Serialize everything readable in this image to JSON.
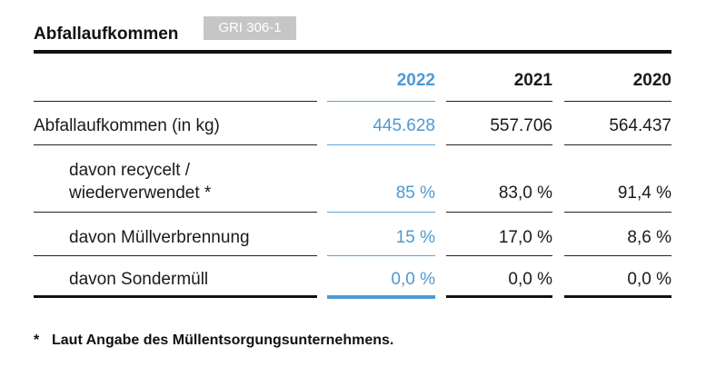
{
  "title": "Abfallaufkommen",
  "badge": "GRI 306-1",
  "columns": [
    "2022",
    "2021",
    "2020"
  ],
  "rows": [
    {
      "label": "Abfallaufkommen (in kg)",
      "values": [
        "445.628",
        "557.706",
        "564.437"
      ]
    },
    {
      "label_line1": "davon recycelt /",
      "label_line2": "wiederverwendet *",
      "values": [
        "85 %",
        "83,0 %",
        "91,4 %"
      ]
    },
    {
      "label": "davon Müllverbrennung",
      "values": [
        "15 %",
        "17,0 %",
        "8,6 %"
      ]
    },
    {
      "label": "davon Sondermüll",
      "values": [
        "0,0 %",
        "0,0 %",
        "0,0 %"
      ]
    }
  ],
  "footnote": {
    "marker": "*",
    "text": "Laut Angabe des Müllentsorgungsunternehmens."
  },
  "colors": {
    "highlight": "#4d9ad4",
    "badge_bg": "#c6c6c6"
  }
}
